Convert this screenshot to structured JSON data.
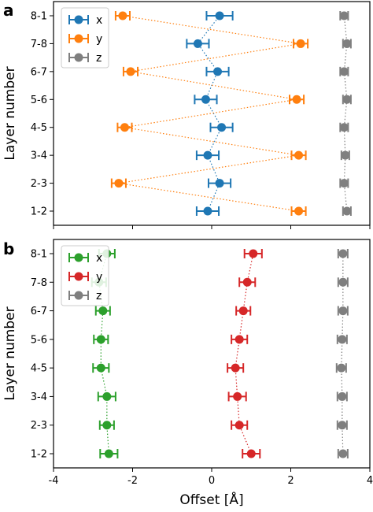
{
  "chart_data": [
    {
      "panel_label": "a",
      "type": "scatter",
      "ylabel": "Layer number",
      "xlabel": "",
      "xlim": [
        -4,
        4
      ],
      "categories": [
        "1-2",
        "2-3",
        "3-4",
        "4-5",
        "5-6",
        "6-7",
        "7-8",
        "8-1"
      ],
      "legend_position": "upper-left",
      "grid": false,
      "series": [
        {
          "name": "x",
          "color": "#1f77b4",
          "values": [
            -0.1,
            0.2,
            -0.1,
            0.25,
            -0.15,
            0.15,
            -0.35,
            0.2
          ],
          "xerr": [
            0.28,
            0.28,
            0.28,
            0.28,
            0.28,
            0.28,
            0.28,
            0.33
          ]
        },
        {
          "name": "y",
          "color": "#ff7f0e",
          "values": [
            2.2,
            -2.35,
            2.2,
            -2.2,
            2.15,
            -2.05,
            2.25,
            -2.25
          ],
          "xerr": [
            0.18,
            0.18,
            0.18,
            0.18,
            0.18,
            0.18,
            0.18,
            0.18
          ]
        },
        {
          "name": "z",
          "color": "#7f7f7f",
          "values": [
            3.42,
            3.35,
            3.38,
            3.35,
            3.42,
            3.35,
            3.42,
            3.35
          ],
          "xerr": [
            0.1,
            0.1,
            0.1,
            0.1,
            0.1,
            0.1,
            0.1,
            0.1
          ]
        }
      ]
    },
    {
      "panel_label": "b",
      "type": "scatter",
      "ylabel": "Layer number",
      "xlabel": "Offset [Å]",
      "xlim": [
        -4,
        4
      ],
      "xticks": [
        "-4",
        "-2",
        "0",
        "2",
        "4"
      ],
      "categories": [
        "1-2",
        "2-3",
        "3-4",
        "4-5",
        "5-6",
        "6-7",
        "7-8",
        "8-1"
      ],
      "legend_position": "upper-left",
      "grid": false,
      "series": [
        {
          "name": "x",
          "color": "#2ca02c",
          "values": [
            -2.6,
            -2.65,
            -2.65,
            -2.8,
            -2.8,
            -2.75,
            -2.85,
            -2.65
          ],
          "xerr": [
            0.22,
            0.18,
            0.22,
            0.2,
            0.18,
            0.18,
            0.18,
            0.2
          ]
        },
        {
          "name": "y",
          "color": "#d62728",
          "values": [
            1.0,
            0.7,
            0.65,
            0.6,
            0.7,
            0.8,
            0.9,
            1.05
          ],
          "xerr": [
            0.22,
            0.2,
            0.22,
            0.2,
            0.2,
            0.18,
            0.2,
            0.22
          ]
        },
        {
          "name": "z",
          "color": "#7f7f7f",
          "values": [
            3.32,
            3.3,
            3.3,
            3.28,
            3.3,
            3.32,
            3.32,
            3.32
          ],
          "xerr": [
            0.12,
            0.12,
            0.12,
            0.12,
            0.12,
            0.12,
            0.12,
            0.12
          ]
        }
      ]
    }
  ]
}
